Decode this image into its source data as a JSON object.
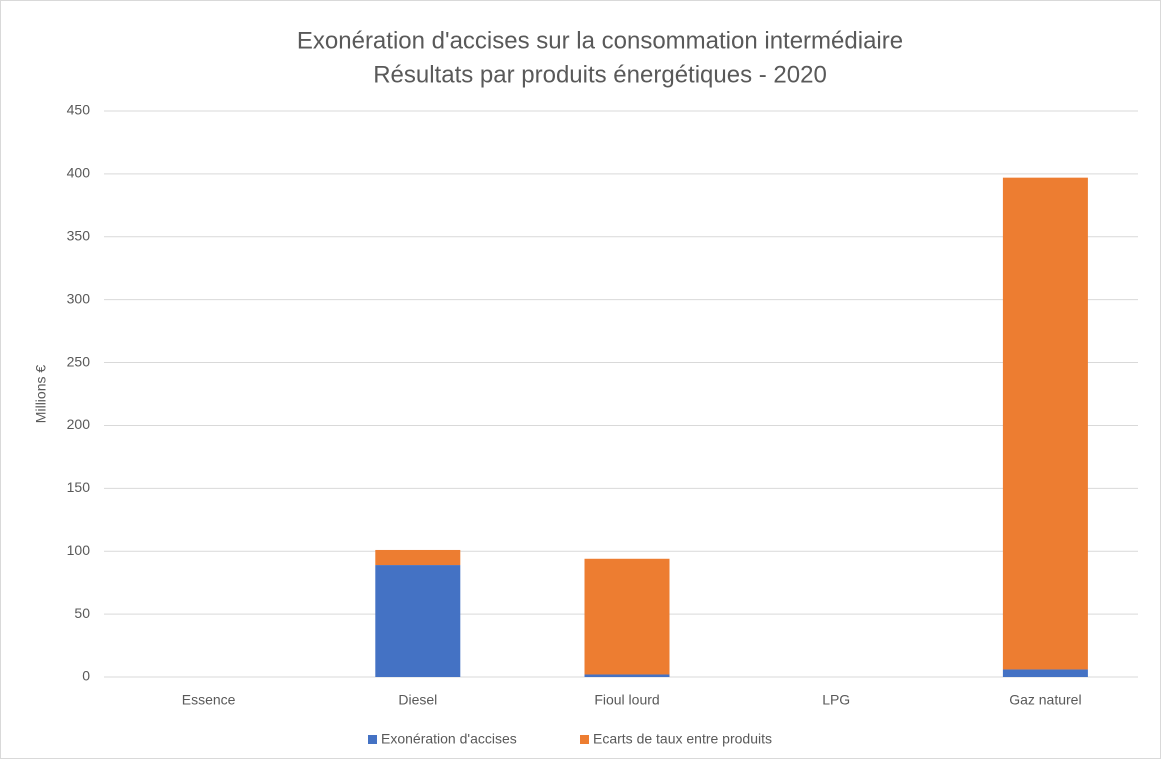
{
  "chart_data": {
    "type": "stacked_bar",
    "title": "Exonération d'accises sur la consommation intermédiaire",
    "subtitle": "Résultats par produits énergétiques - 2020",
    "y_label": "Millions €",
    "categories": [
      "Essence",
      "Diesel",
      "Fioul lourd",
      "LPG",
      "Gaz naturel"
    ],
    "series": [
      {
        "name": "Exonération d'accises",
        "color": "#4472c4",
        "values": [
          0,
          89,
          2,
          0,
          6
        ]
      },
      {
        "name": "Ecarts de taux entre produits",
        "color": "#ed7d31",
        "values": [
          0,
          12,
          92,
          0,
          391
        ]
      }
    ],
    "ylim": [
      0,
      450
    ],
    "yticks": [
      0,
      50,
      100,
      150,
      200,
      250,
      300,
      350,
      400,
      450
    ],
    "grid": true,
    "legend": "bottom"
  }
}
